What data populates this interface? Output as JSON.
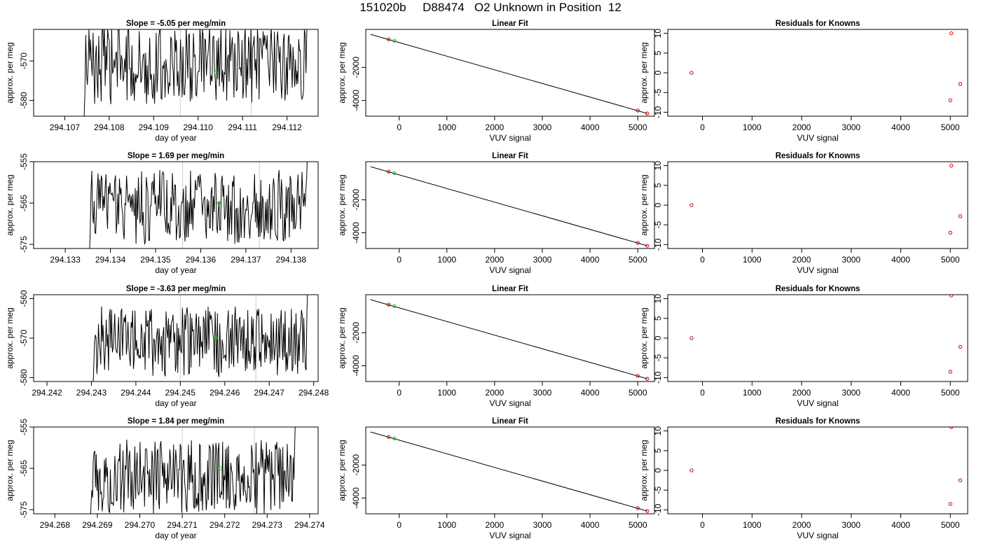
{
  "page": {
    "title": "151020b     D88474   O2 Unknown in Position  12"
  },
  "colors": {
    "trace": "#000000",
    "known_marker": "#cc0000",
    "unknown_marker": "#00cc00",
    "vertical_marker": "#cccccc"
  },
  "chart_data": [
    {
      "type": "line",
      "panel": "time-trace",
      "row": 1,
      "title": "Slope =  -5.05  per meg/min",
      "xlabel": "day of year",
      "ylabel": "approx. per meg",
      "xlim": [
        294.1063,
        294.1127
      ],
      "ylim": [
        -584,
        -562
      ],
      "x_ticks": [
        294.107,
        294.108,
        294.109,
        294.11,
        294.111,
        294.112
      ],
      "x_tick_labels": [
        "294.107",
        "294.108",
        "294.109",
        "294.110",
        "294.111",
        "294.112"
      ],
      "y_ticks": [
        -580,
        -570
      ],
      "y_tick_labels": [
        "-580",
        "-570"
      ],
      "vlines": [
        294.1096,
        294.1112
      ],
      "trace_start": 294.1074,
      "trace_end": 294.1125,
      "trace_mean": -571,
      "trace_amplitude": 10,
      "unknown_point": {
        "x": 294.1104,
        "y": -573
      },
      "grid": false,
      "legend": "none"
    },
    {
      "type": "scatter",
      "panel": "linear-fit",
      "row": 1,
      "title": "Linear Fit",
      "xlabel": "VUV signal",
      "ylabel": "approx. per meg",
      "xlim": [
        -700,
        5350
      ],
      "ylim": [
        -4950,
        300
      ],
      "x_ticks": [
        0,
        1000,
        2000,
        3000,
        4000,
        5000
      ],
      "y_ticks": [
        -2000,
        -4000
      ],
      "y_tick_labels": [
        "-2000",
        "-4000"
      ],
      "fit_line": [
        [
          -600,
          0
        ],
        [
          5200,
          -4785
        ]
      ],
      "knowns": [
        {
          "x": -220,
          "y": -300
        },
        {
          "x": 5000,
          "y": -4610
        },
        {
          "x": 5200,
          "y": -4785
        }
      ],
      "unknowns": [
        {
          "x": -100,
          "y": -385
        }
      ],
      "grid": false,
      "legend": "none"
    },
    {
      "type": "scatter",
      "panel": "residuals",
      "row": 1,
      "title": "Residuals for Knowns",
      "xlabel": "VUV signal",
      "ylabel": "approx. per meg",
      "xlim": [
        -700,
        5350
      ],
      "ylim": [
        -11,
        11
      ],
      "x_ticks": [
        0,
        1000,
        2000,
        3000,
        4000,
        5000
      ],
      "y_ticks": [
        -10,
        -5,
        0,
        5,
        10
      ],
      "y_tick_labels": [
        "-10",
        "-5",
        "0",
        "5",
        "10"
      ],
      "points": [
        {
          "x": -220,
          "y": 0
        },
        {
          "x": 5020,
          "y": 10
        },
        {
          "x": 5200,
          "y": -2.8
        },
        {
          "x": 5000,
          "y": -7
        }
      ],
      "grid": false,
      "legend": "none"
    },
    {
      "type": "line",
      "panel": "time-trace",
      "row": 2,
      "title": "Slope =  1.69  per meg/min",
      "xlabel": "day of year",
      "ylabel": "approx. per meg",
      "xlim": [
        294.1323,
        294.1386
      ],
      "ylim": [
        -576,
        -555
      ],
      "x_ticks": [
        294.133,
        294.134,
        294.135,
        294.136,
        294.137,
        294.138
      ],
      "x_tick_labels": [
        "294.133",
        "294.134",
        "294.135",
        "294.136",
        "294.137",
        "294.138"
      ],
      "y_ticks": [
        -575,
        -565,
        -555
      ],
      "y_tick_labels": [
        "-575",
        "-565",
        "-555"
      ],
      "vlines": [
        294.1356,
        294.1373
      ],
      "trace_start": 294.1335,
      "trace_end": 294.1384,
      "trace_mean": -566,
      "trace_amplitude": 9,
      "unknown_point": {
        "x": 294.1364,
        "y": -565
      },
      "grid": false,
      "legend": "none"
    },
    {
      "type": "scatter",
      "panel": "linear-fit",
      "row": 2,
      "title": "Linear Fit",
      "xlabel": "VUV signal",
      "ylabel": "approx. per meg",
      "xlim": [
        -700,
        5350
      ],
      "ylim": [
        -4950,
        300
      ],
      "x_ticks": [
        0,
        1000,
        2000,
        3000,
        4000,
        5000
      ],
      "y_ticks": [
        -2000,
        -4000
      ],
      "y_tick_labels": [
        "-2000",
        "-4000"
      ],
      "fit_line": [
        [
          -600,
          0
        ],
        [
          5200,
          -4785
        ]
      ],
      "knowns": [
        {
          "x": -220,
          "y": -300
        },
        {
          "x": 5000,
          "y": -4610
        },
        {
          "x": 5200,
          "y": -4785
        }
      ],
      "unknowns": [
        {
          "x": -100,
          "y": -385
        }
      ],
      "grid": false,
      "legend": "none"
    },
    {
      "type": "scatter",
      "panel": "residuals",
      "row": 2,
      "title": "Residuals for Knowns",
      "xlabel": "VUV signal",
      "ylabel": "approx. per meg",
      "xlim": [
        -700,
        5350
      ],
      "ylim": [
        -11,
        11
      ],
      "x_ticks": [
        0,
        1000,
        2000,
        3000,
        4000,
        5000
      ],
      "y_ticks": [
        -10,
        -5,
        0,
        5,
        10
      ],
      "y_tick_labels": [
        "-10",
        "-5",
        "0",
        "5",
        "10"
      ],
      "points": [
        {
          "x": -220,
          "y": 0
        },
        {
          "x": 5020,
          "y": 10
        },
        {
          "x": 5200,
          "y": -2.8
        },
        {
          "x": 5000,
          "y": -7
        }
      ],
      "grid": false,
      "legend": "none"
    },
    {
      "type": "line",
      "panel": "time-trace",
      "row": 3,
      "title": "Slope =  -3.63  per meg/min",
      "xlabel": "day of year",
      "ylabel": "approx. per meg",
      "xlim": [
        294.2417,
        294.2481
      ],
      "ylim": [
        -581,
        -559
      ],
      "x_ticks": [
        294.242,
        294.243,
        294.244,
        294.245,
        294.246,
        294.247,
        294.248
      ],
      "x_tick_labels": [
        "294.242",
        "294.243",
        "294.244",
        "294.245",
        "294.246",
        "294.247",
        "294.248"
      ],
      "y_ticks": [
        -580,
        -570,
        -560
      ],
      "y_tick_labels": [
        "-580",
        "-570",
        "-560"
      ],
      "vlines": [
        294.245,
        294.2467
      ],
      "trace_start": 294.243,
      "trace_end": 294.2479,
      "trace_mean": -571,
      "trace_amplitude": 9,
      "unknown_point": {
        "x": 294.2458,
        "y": -570
      },
      "grid": false,
      "legend": "none"
    },
    {
      "type": "scatter",
      "panel": "linear-fit",
      "row": 3,
      "title": "Linear Fit",
      "xlabel": "VUV signal",
      "ylabel": "approx. per meg",
      "xlim": [
        -700,
        5350
      ],
      "ylim": [
        -4950,
        300
      ],
      "x_ticks": [
        0,
        1000,
        2000,
        3000,
        4000,
        5000
      ],
      "y_ticks": [
        -2000,
        -4000
      ],
      "y_tick_labels": [
        "-2000",
        "-4000"
      ],
      "fit_line": [
        [
          -600,
          0
        ],
        [
          5200,
          -4785
        ]
      ],
      "knowns": [
        {
          "x": -220,
          "y": -300
        },
        {
          "x": 5000,
          "y": -4610
        },
        {
          "x": 5200,
          "y": -4785
        }
      ],
      "unknowns": [
        {
          "x": -100,
          "y": -385
        }
      ],
      "grid": false,
      "legend": "none"
    },
    {
      "type": "scatter",
      "panel": "residuals",
      "row": 3,
      "title": "Residuals for Knowns",
      "xlabel": "VUV signal",
      "ylabel": "approx. per meg",
      "xlim": [
        -700,
        5350
      ],
      "ylim": [
        -11,
        11
      ],
      "x_ticks": [
        0,
        1000,
        2000,
        3000,
        4000,
        5000
      ],
      "y_ticks": [
        -10,
        -5,
        0,
        5,
        10
      ],
      "y_tick_labels": [
        "-10",
        "-5",
        "0",
        "5",
        "10"
      ],
      "points": [
        {
          "x": -220,
          "y": 0
        },
        {
          "x": 5020,
          "y": 10.8
        },
        {
          "x": 5200,
          "y": -2.2
        },
        {
          "x": 5000,
          "y": -8.5
        }
      ],
      "grid": false,
      "legend": "none"
    },
    {
      "type": "line",
      "panel": "time-trace",
      "row": 4,
      "title": "Slope =  1.84  per meg/min",
      "xlabel": "day of year",
      "ylabel": "approx. per meg",
      "xlim": [
        294.2675,
        294.2742
      ],
      "ylim": [
        -576,
        -555
      ],
      "x_ticks": [
        294.268,
        294.269,
        294.27,
        294.271,
        294.272,
        294.273,
        294.274
      ],
      "x_tick_labels": [
        "294.268",
        "294.269",
        "294.270",
        "294.271",
        "294.272",
        "294.273",
        "294.274"
      ],
      "y_ticks": [
        -575,
        -565,
        -555
      ],
      "y_tick_labels": [
        "-575",
        "-565",
        "-555"
      ],
      "vlines": [
        294.271,
        294.2727
      ],
      "trace_start": 294.2688,
      "trace_end": 294.2737,
      "trace_mean": -567,
      "trace_amplitude": 9,
      "unknown_point": {
        "x": 294.2719,
        "y": -565
      },
      "grid": false,
      "legend": "none"
    },
    {
      "type": "scatter",
      "panel": "linear-fit",
      "row": 4,
      "title": "Linear Fit",
      "xlabel": "VUV signal",
      "ylabel": "approx. per meg",
      "xlim": [
        -700,
        5350
      ],
      "ylim": [
        -4950,
        300
      ],
      "x_ticks": [
        0,
        1000,
        2000,
        3000,
        4000,
        5000
      ],
      "y_ticks": [
        -2000,
        -4000
      ],
      "y_tick_labels": [
        "-2000",
        "-4000"
      ],
      "fit_line": [
        [
          -600,
          0
        ],
        [
          5200,
          -4785
        ]
      ],
      "knowns": [
        {
          "x": -220,
          "y": -300
        },
        {
          "x": 5000,
          "y": -4610
        },
        {
          "x": 5200,
          "y": -4785
        }
      ],
      "unknowns": [
        {
          "x": -100,
          "y": -385
        }
      ],
      "grid": false,
      "legend": "none"
    },
    {
      "type": "scatter",
      "panel": "residuals",
      "row": 4,
      "title": "Residuals for Knowns",
      "xlabel": "VUV signal",
      "ylabel": "approx. per meg",
      "xlim": [
        -700,
        5350
      ],
      "ylim": [
        -11,
        11
      ],
      "x_ticks": [
        0,
        1000,
        2000,
        3000,
        4000,
        5000
      ],
      "y_ticks": [
        -10,
        -5,
        0,
        5,
        10
      ],
      "y_tick_labels": [
        "-10",
        "-5",
        "0",
        "5",
        "10"
      ],
      "points": [
        {
          "x": -220,
          "y": 0
        },
        {
          "x": 5020,
          "y": 11
        },
        {
          "x": 5200,
          "y": -2.5
        },
        {
          "x": 5000,
          "y": -8.5
        }
      ],
      "grid": false,
      "legend": "none"
    }
  ]
}
